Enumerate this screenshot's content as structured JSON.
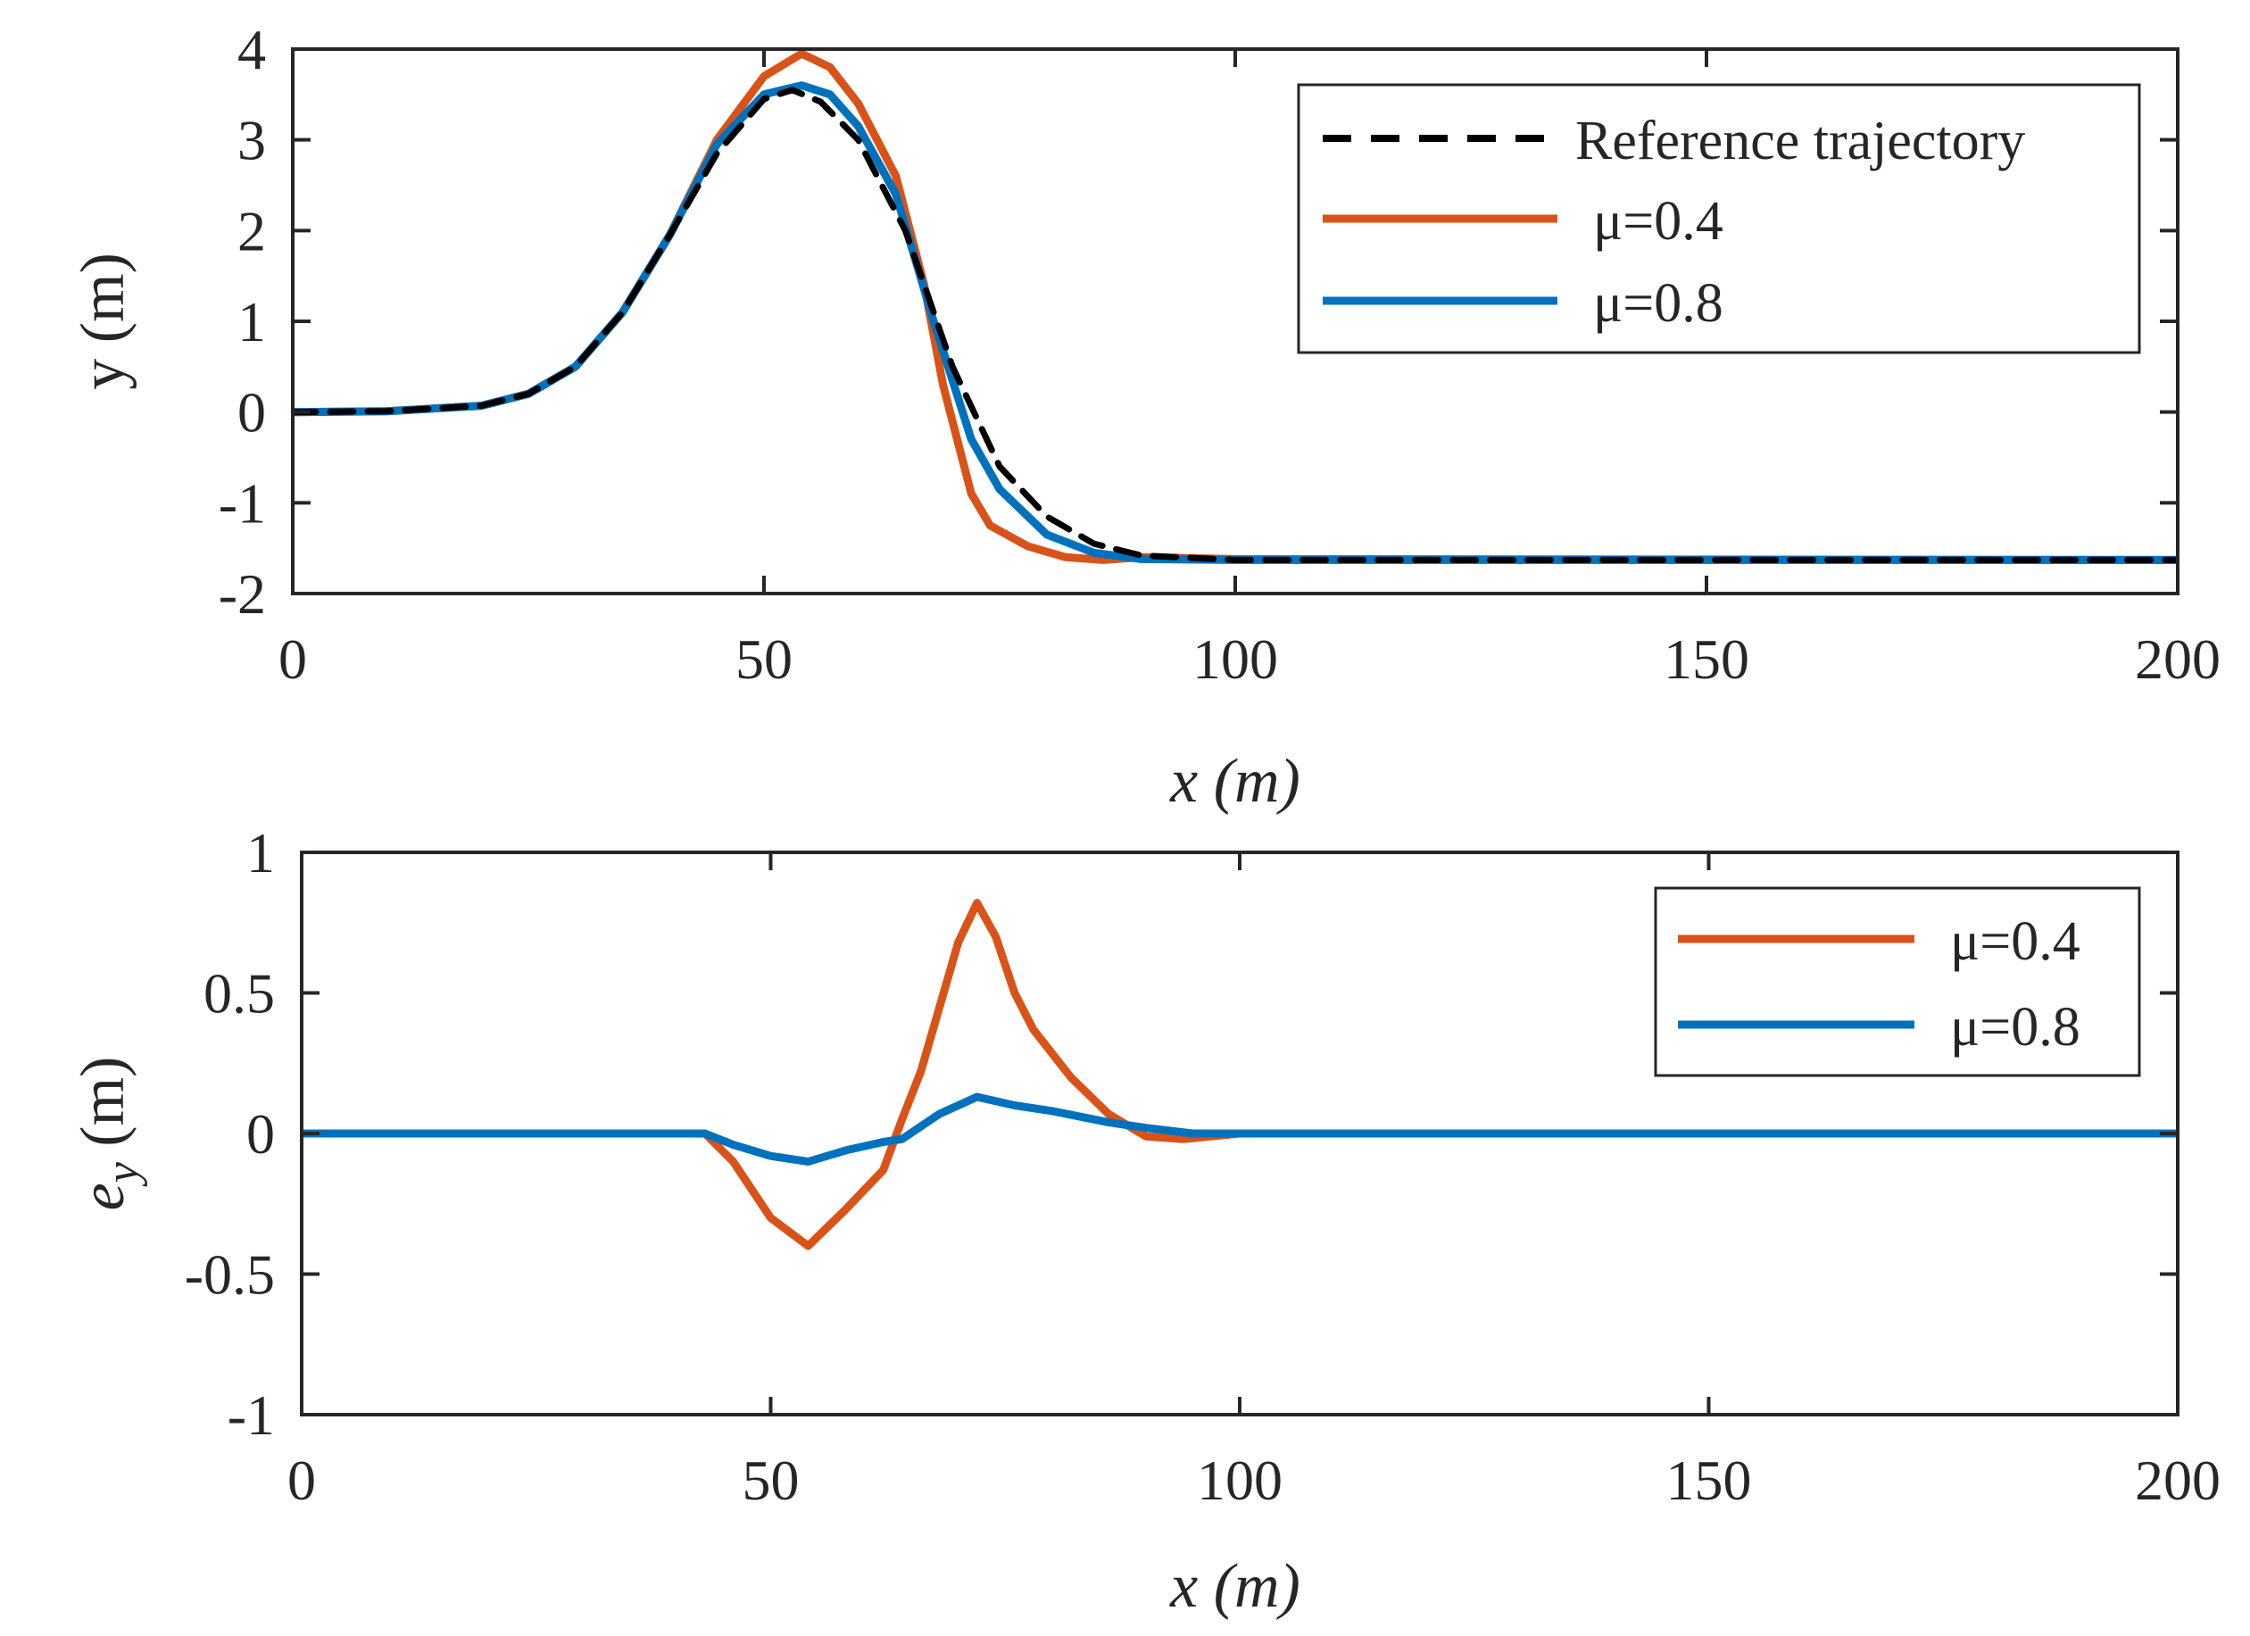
{
  "colors": {
    "reference": "#000000",
    "mu04": "#D95319",
    "mu08": "#0072BD",
    "axis": "#262626"
  },
  "chart_data": [
    {
      "type": "line",
      "title": "",
      "xlabel": "x (m)",
      "ylabel": "y (m)",
      "xlim": [
        0,
        200
      ],
      "ylim": [
        -2,
        4
      ],
      "xticks": [
        0,
        50,
        100,
        150,
        200
      ],
      "xtick_labels": [
        "0",
        "50",
        "100",
        "150",
        "200"
      ],
      "yticks": [
        -2,
        -1,
        0,
        1,
        2,
        3,
        4
      ],
      "ytick_labels": [
        "-2",
        "-1",
        "0",
        "1",
        "2",
        "3",
        "4"
      ],
      "legend_position": "top-right",
      "series": [
        {
          "name": "Reference trajectory",
          "style": "dashed",
          "color_key": "reference",
          "points": [
            [
              0,
              0
            ],
            [
              10,
              0.01
            ],
            [
              20,
              0.07
            ],
            [
              25,
              0.2
            ],
            [
              30,
              0.5
            ],
            [
              35,
              1.1
            ],
            [
              40,
              1.95
            ],
            [
              45,
              2.85
            ],
            [
              50,
              3.45
            ],
            [
              53,
              3.55
            ],
            [
              56,
              3.42
            ],
            [
              60,
              3.0
            ],
            [
              65,
              2.0
            ],
            [
              70,
              0.5
            ],
            [
              75,
              -0.6
            ],
            [
              80,
              -1.15
            ],
            [
              85,
              -1.45
            ],
            [
              90,
              -1.58
            ],
            [
              100,
              -1.63
            ],
            [
              200,
              -1.63
            ]
          ]
        },
        {
          "name": "μ=0.4",
          "style": "solid",
          "color_key": "mu04",
          "points": [
            [
              0,
              0
            ],
            [
              10,
              0.01
            ],
            [
              20,
              0.07
            ],
            [
              25,
              0.2
            ],
            [
              30,
              0.5
            ],
            [
              35,
              1.1
            ],
            [
              40,
              1.95
            ],
            [
              45,
              3.0
            ],
            [
              50,
              3.7
            ],
            [
              54,
              3.95
            ],
            [
              57,
              3.8
            ],
            [
              60,
              3.4
            ],
            [
              64,
              2.6
            ],
            [
              67,
              1.4
            ],
            [
              69,
              0.3
            ],
            [
              72,
              -0.9
            ],
            [
              74,
              -1.25
            ],
            [
              78,
              -1.48
            ],
            [
              82,
              -1.6
            ],
            [
              86,
              -1.63
            ],
            [
              90,
              -1.6
            ],
            [
              100,
              -1.62
            ],
            [
              200,
              -1.63
            ]
          ]
        },
        {
          "name": "μ=0.8",
          "style": "solid",
          "color_key": "mu08",
          "points": [
            [
              0,
              0
            ],
            [
              10,
              0.01
            ],
            [
              20,
              0.07
            ],
            [
              25,
              0.2
            ],
            [
              30,
              0.5
            ],
            [
              35,
              1.1
            ],
            [
              40,
              1.95
            ],
            [
              45,
              2.95
            ],
            [
              50,
              3.5
            ],
            [
              54,
              3.6
            ],
            [
              57,
              3.5
            ],
            [
              60,
              3.15
            ],
            [
              64,
              2.4
            ],
            [
              68,
              1.0
            ],
            [
              72,
              -0.3
            ],
            [
              75,
              -0.85
            ],
            [
              80,
              -1.35
            ],
            [
              85,
              -1.55
            ],
            [
              90,
              -1.62
            ],
            [
              100,
              -1.63
            ],
            [
              200,
              -1.63
            ]
          ]
        }
      ]
    },
    {
      "type": "line",
      "title": "",
      "xlabel": "x (m)",
      "ylabel": "e_y (m)",
      "ylabel_main": "e",
      "ylabel_sub": "y",
      "ylabel_unit": " (m)",
      "xlim": [
        0,
        200
      ],
      "ylim": [
        -1,
        1
      ],
      "xticks": [
        0,
        50,
        100,
        150,
        200
      ],
      "xtick_labels": [
        "0",
        "50",
        "100",
        "150",
        "200"
      ],
      "yticks": [
        -1,
        -0.5,
        0,
        0.5,
        1
      ],
      "ytick_labels": [
        "-1",
        "-0.5",
        "0",
        "0.5",
        "1"
      ],
      "legend_position": "top-right",
      "series": [
        {
          "name": "μ=0.4",
          "style": "solid",
          "color_key": "mu04",
          "points": [
            [
              0,
              0
            ],
            [
              20,
              0
            ],
            [
              40,
              0
            ],
            [
              43,
              0
            ],
            [
              46,
              -0.1
            ],
            [
              50,
              -0.3
            ],
            [
              54,
              -0.4
            ],
            [
              58,
              -0.27
            ],
            [
              62,
              -0.13
            ],
            [
              64,
              0.05
            ],
            [
              66,
              0.22
            ],
            [
              68,
              0.45
            ],
            [
              70,
              0.68
            ],
            [
              72,
              0.82
            ],
            [
              74,
              0.7
            ],
            [
              76,
              0.5
            ],
            [
              78,
              0.37
            ],
            [
              82,
              0.2
            ],
            [
              86,
              0.07
            ],
            [
              90,
              -0.01
            ],
            [
              94,
              -0.02
            ],
            [
              100,
              0
            ],
            [
              200,
              0
            ]
          ]
        },
        {
          "name": "μ=0.8",
          "style": "solid",
          "color_key": "mu08",
          "points": [
            [
              0,
              0
            ],
            [
              20,
              0
            ],
            [
              40,
              0
            ],
            [
              43,
              0
            ],
            [
              46,
              -0.04
            ],
            [
              50,
              -0.08
            ],
            [
              54,
              -0.1
            ],
            [
              58,
              -0.06
            ],
            [
              62,
              -0.03
            ],
            [
              64,
              -0.02
            ],
            [
              68,
              0.07
            ],
            [
              72,
              0.13
            ],
            [
              76,
              0.1
            ],
            [
              80,
              0.08
            ],
            [
              86,
              0.04
            ],
            [
              90,
              0.02
            ],
            [
              95,
              0
            ],
            [
              100,
              0
            ],
            [
              200,
              0
            ]
          ]
        }
      ]
    }
  ]
}
